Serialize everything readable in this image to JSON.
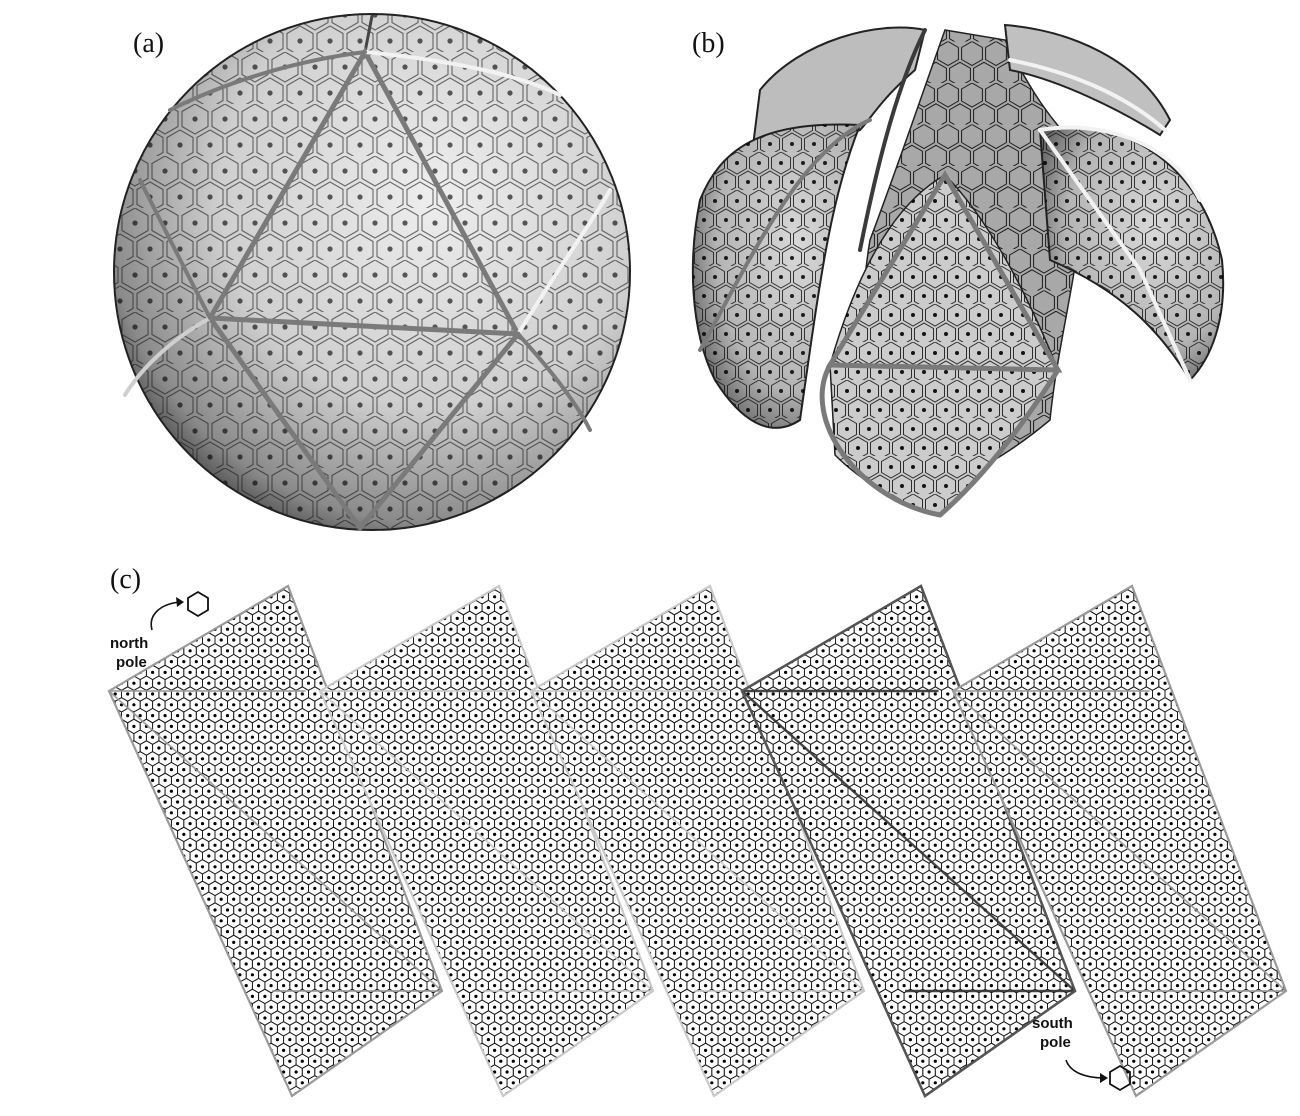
{
  "panels": {
    "a": {
      "label": "(a)"
    },
    "b": {
      "label": "(b)"
    },
    "c": {
      "label": "(c)"
    }
  },
  "annotations": {
    "north_pole": [
      "north",
      "pole"
    ],
    "south_pole": [
      "south",
      "pole"
    ]
  },
  "colors": {
    "background": "#ffffff",
    "sphere_light": "#e6e6e6",
    "sphere_dark": "#3c3c3c",
    "cell_edge": "#1a1a1a",
    "cell_dot": "#000000",
    "great_circle_mid": "#7a7a7a",
    "great_circle_light": "#f2f2f2",
    "great_circle_dark": "#3a3a3a",
    "rhombus_outline": "#9a9a9a"
  },
  "rhombus_count": 5
}
